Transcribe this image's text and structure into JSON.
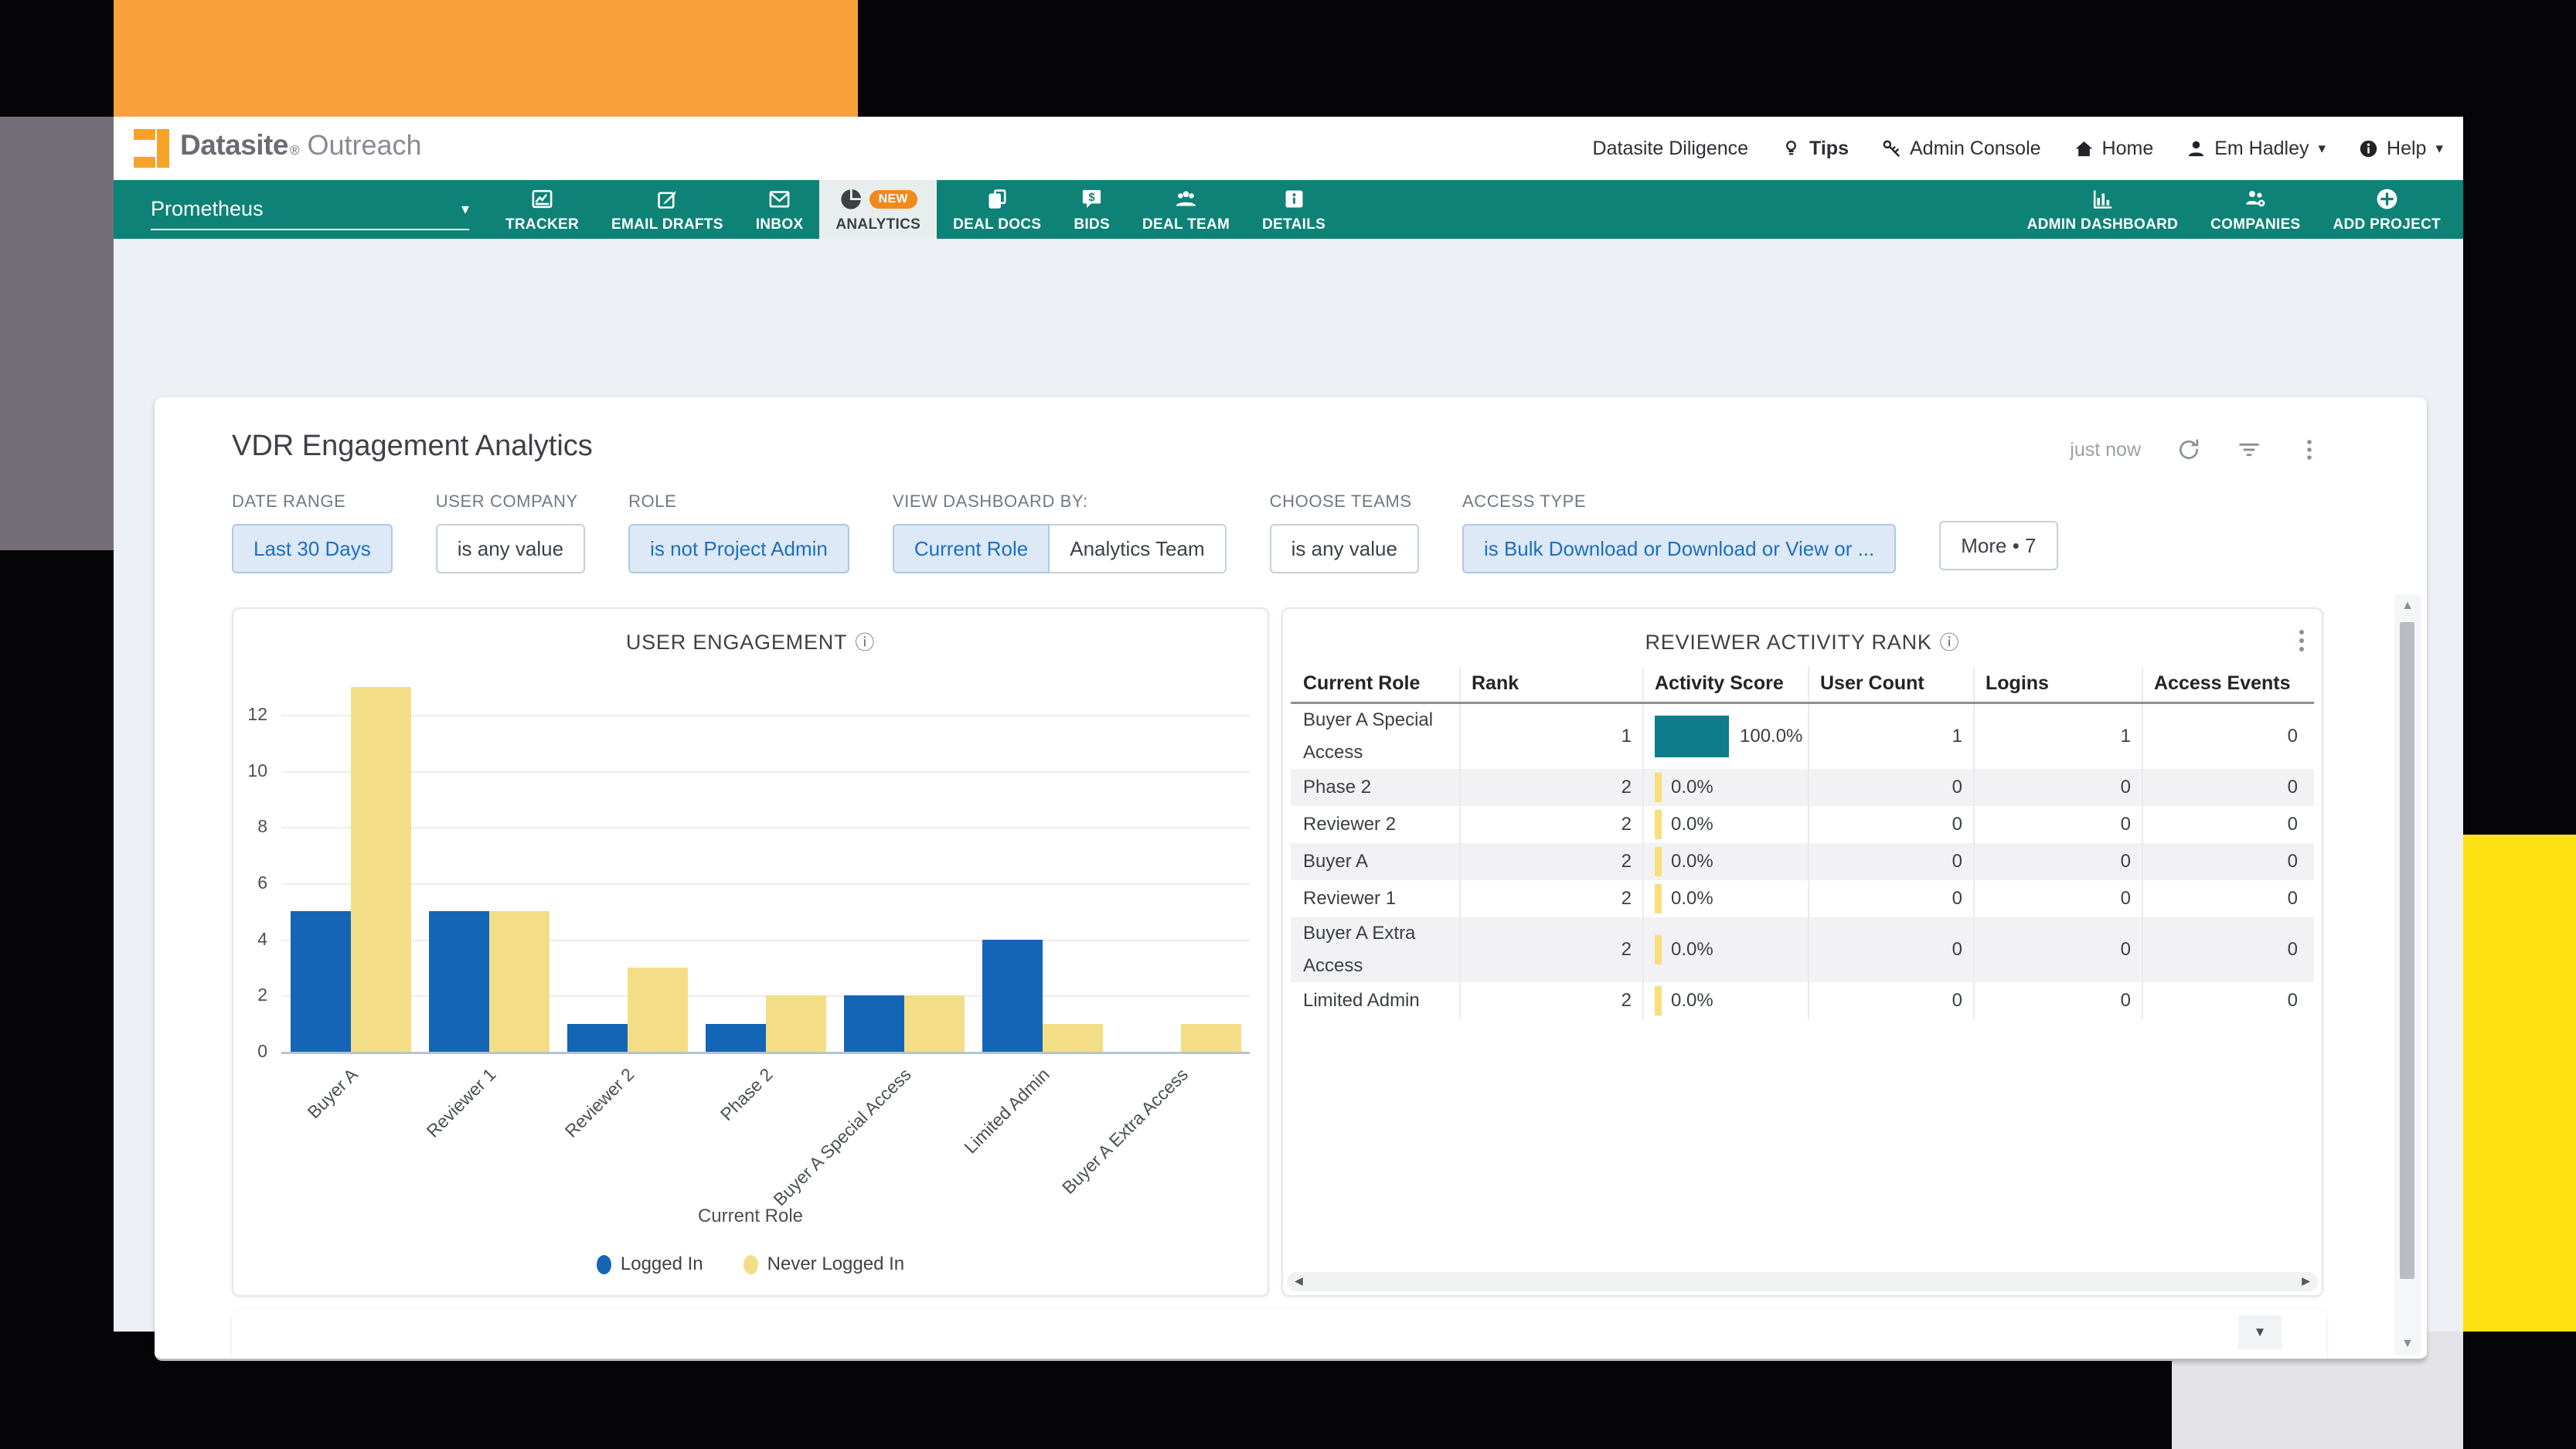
{
  "window": {
    "brand": "Datasite",
    "brand_mark": "®",
    "product": "Outreach"
  },
  "top_nav": {
    "items": [
      {
        "label": "Datasite Diligence",
        "icon": "",
        "bold": false,
        "caret": false
      },
      {
        "label": "Tips",
        "icon": "lightbulb",
        "bold": true,
        "caret": false
      },
      {
        "label": "Admin Console",
        "icon": "key",
        "bold": false,
        "caret": false
      },
      {
        "label": "Home",
        "icon": "home",
        "bold": false,
        "caret": false
      },
      {
        "label": "Em Hadley",
        "icon": "user",
        "bold": false,
        "caret": true
      },
      {
        "label": "Help",
        "icon": "infocircle",
        "bold": false,
        "caret": true
      }
    ]
  },
  "project_bar": {
    "project_name": "Prometheus",
    "tabs": [
      {
        "label": "TRACKER",
        "icon": "chartline",
        "selected": false,
        "badge": ""
      },
      {
        "label": "EMAIL DRAFTS",
        "icon": "edit",
        "selected": false,
        "badge": ""
      },
      {
        "label": "INBOX",
        "icon": "envelope",
        "selected": false,
        "badge": ""
      },
      {
        "label": "ANALYTICS",
        "icon": "pie",
        "selected": true,
        "badge": "NEW"
      },
      {
        "label": "DEAL DOCS",
        "icon": "docs",
        "selected": false,
        "badge": ""
      },
      {
        "label": "BIDS",
        "icon": "bids",
        "selected": false,
        "badge": ""
      },
      {
        "label": "DEAL TEAM",
        "icon": "team",
        "selected": false,
        "badge": ""
      },
      {
        "label": "DETAILS",
        "icon": "infosquare",
        "selected": false,
        "badge": ""
      }
    ],
    "right_actions": [
      {
        "label": "ADMIN DASHBOARD",
        "icon": "barchart"
      },
      {
        "label": "COMPANIES",
        "icon": "companies"
      },
      {
        "label": "ADD PROJECT",
        "icon": "plus"
      }
    ]
  },
  "dashboard": {
    "title": "VDR Engagement Analytics",
    "updated_label": "just now",
    "more_button": "More • 7",
    "filters": [
      {
        "label": "DATE RANGE",
        "type": "chip",
        "value": "Last 30 Days",
        "highlighted": true
      },
      {
        "label": "USER COMPANY",
        "type": "chip",
        "value": "is any value",
        "highlighted": false
      },
      {
        "label": "ROLE",
        "type": "chip",
        "value": "is not Project Admin",
        "highlighted": true
      },
      {
        "label": "VIEW DASHBOARD BY:",
        "type": "segmented",
        "options": [
          {
            "value": "Current Role",
            "selected": true
          },
          {
            "value": "Analytics Team",
            "selected": false
          }
        ]
      },
      {
        "label": "CHOOSE TEAMS",
        "type": "chip",
        "value": "is any value",
        "highlighted": false
      },
      {
        "label": "ACCESS TYPE",
        "type": "chip",
        "value": "is Bulk Download or Download or View or ...",
        "highlighted": true
      }
    ]
  },
  "chart_data": [
    {
      "type": "bar",
      "title": "USER ENGAGEMENT",
      "categories": [
        "Buyer A",
        "Reviewer 1",
        "Reviewer 2",
        "Phase 2",
        "Buyer A Special Access",
        "Limited Admin",
        "Buyer A Extra Access"
      ],
      "series": [
        {
          "name": "Logged In",
          "color": "#1565B6",
          "values": [
            5,
            5,
            1,
            1,
            2,
            4,
            0
          ]
        },
        {
          "name": "Never Logged In",
          "color": "#F3DE87",
          "values": [
            13,
            5,
            3,
            2,
            2,
            1,
            1
          ]
        }
      ],
      "xlabel": "Current Role",
      "ylabel": "",
      "ylim": [
        0,
        13
      ],
      "yticks": [
        0,
        2,
        4,
        6,
        8,
        10,
        12
      ],
      "grid": true,
      "legend_position": "bottom"
    },
    {
      "type": "table",
      "title": "REVIEWER ACTIVITY RANK",
      "columns": [
        "Current Role",
        "Rank",
        "Activity Score",
        "User Count",
        "Logins",
        "Access Events"
      ],
      "rows": [
        {
          "current_role": "Buyer A Special Access",
          "rank": 1,
          "activity_score": "100.0%",
          "score_pct": 100,
          "user_count": 1,
          "logins": 1,
          "access_events": 0
        },
        {
          "current_role": "Phase 2",
          "rank": 2,
          "activity_score": "0.0%",
          "score_pct": 0,
          "user_count": 0,
          "logins": 0,
          "access_events": 0
        },
        {
          "current_role": "Reviewer 2",
          "rank": 2,
          "activity_score": "0.0%",
          "score_pct": 0,
          "user_count": 0,
          "logins": 0,
          "access_events": 0
        },
        {
          "current_role": "Buyer A",
          "rank": 2,
          "activity_score": "0.0%",
          "score_pct": 0,
          "user_count": 0,
          "logins": 0,
          "access_events": 0
        },
        {
          "current_role": "Reviewer 1",
          "rank": 2,
          "activity_score": "0.0%",
          "score_pct": 0,
          "user_count": 0,
          "logins": 0,
          "access_events": 0
        },
        {
          "current_role": "Buyer A Extra Access",
          "rank": 2,
          "activity_score": "0.0%",
          "score_pct": 0,
          "user_count": 0,
          "logins": 0,
          "access_events": 0
        },
        {
          "current_role": "Limited Admin",
          "rank": 2,
          "activity_score": "0.0%",
          "score_pct": 0,
          "user_count": 0,
          "logins": 0,
          "access_events": 0
        }
      ]
    }
  ],
  "colors": {
    "navbar_teal": "#0E8276",
    "badge_orange": "#F08A1D",
    "logo_orange": "#F6A328",
    "bar_blue": "#1565B6",
    "bar_yellow": "#F3DE87",
    "score_teal": "#0E7C8A",
    "score_yellow": "#F6DF7C",
    "chip_active_bg": "#DDE9F6",
    "chip_active_text": "#1D6FC0",
    "block_orange": "#F9A23C",
    "block_gray": "#746E79",
    "block_yellow": "#FFE213",
    "block_bottom_gray": "#E4E3E7"
  }
}
